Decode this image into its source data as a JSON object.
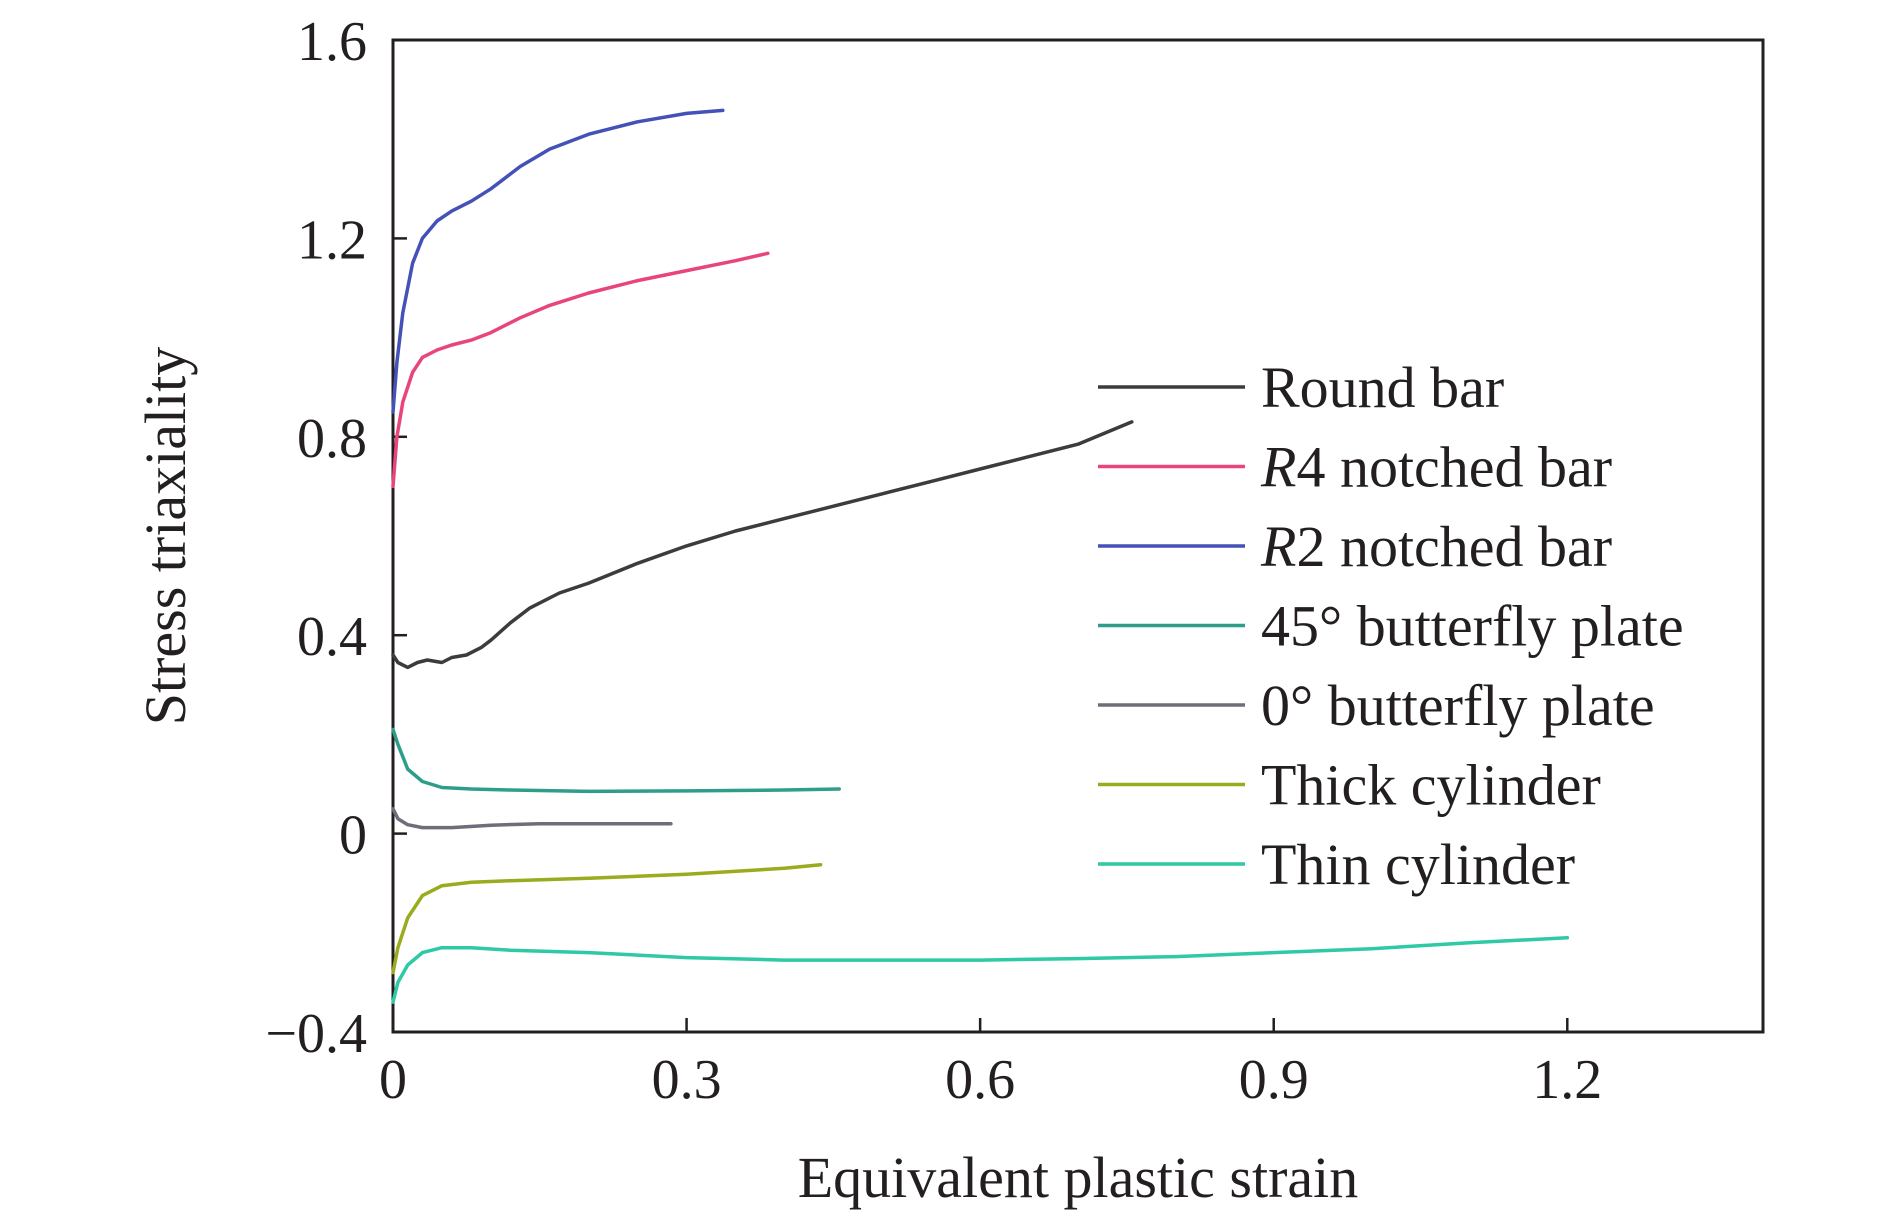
{
  "chart_data": {
    "type": "line",
    "xlabel": "Equivalent plastic strain",
    "ylabel": "Stress triaxiality",
    "xlim": [
      0,
      1.4
    ],
    "ylim": [
      -0.4,
      1.6
    ],
    "x_ticks": [
      "0",
      "0.3",
      "0.6",
      "0.9",
      "1.2"
    ],
    "y_ticks": [
      "−0.4",
      "0",
      "0.4",
      "0.8",
      "1.2",
      "1.6"
    ],
    "x_tick_values": [
      0,
      0.3,
      0.6,
      0.9,
      1.2
    ],
    "y_tick_values": [
      -0.4,
      0,
      0.4,
      0.8,
      1.2,
      1.6
    ],
    "grid": false,
    "legend_position": "right",
    "series": [
      {
        "name": "Round bar",
        "italic_prefix": "",
        "name_rest": "Round bar",
        "color": "#3c3c3c",
        "points": [
          [
            0,
            0.36
          ],
          [
            0.005,
            0.345
          ],
          [
            0.015,
            0.335
          ],
          [
            0.025,
            0.345
          ],
          [
            0.035,
            0.35
          ],
          [
            0.05,
            0.345
          ],
          [
            0.06,
            0.355
          ],
          [
            0.075,
            0.36
          ],
          [
            0.09,
            0.375
          ],
          [
            0.1,
            0.39
          ],
          [
            0.12,
            0.425
          ],
          [
            0.14,
            0.455
          ],
          [
            0.17,
            0.485
          ],
          [
            0.2,
            0.505
          ],
          [
            0.25,
            0.545
          ],
          [
            0.3,
            0.58
          ],
          [
            0.35,
            0.61
          ],
          [
            0.4,
            0.635
          ],
          [
            0.45,
            0.66
          ],
          [
            0.5,
            0.685
          ],
          [
            0.55,
            0.71
          ],
          [
            0.6,
            0.735
          ],
          [
            0.65,
            0.76
          ],
          [
            0.7,
            0.785
          ],
          [
            0.755,
            0.83
          ]
        ]
      },
      {
        "name": "R4 notched bar",
        "italic_prefix": "R",
        "name_rest": "4 notched bar",
        "color": "#e8457a",
        "points": [
          [
            0,
            0.7
          ],
          [
            0.004,
            0.8
          ],
          [
            0.01,
            0.87
          ],
          [
            0.02,
            0.93
          ],
          [
            0.03,
            0.96
          ],
          [
            0.045,
            0.975
          ],
          [
            0.06,
            0.985
          ],
          [
            0.08,
            0.995
          ],
          [
            0.1,
            1.01
          ],
          [
            0.13,
            1.04
          ],
          [
            0.16,
            1.065
          ],
          [
            0.2,
            1.09
          ],
          [
            0.25,
            1.115
          ],
          [
            0.3,
            1.135
          ],
          [
            0.35,
            1.155
          ],
          [
            0.383,
            1.17
          ]
        ]
      },
      {
        "name": "R2 notched bar",
        "italic_prefix": "R",
        "name_rest": "2 notched bar",
        "color": "#4451b6",
        "points": [
          [
            0,
            0.85
          ],
          [
            0.004,
            0.95
          ],
          [
            0.01,
            1.05
          ],
          [
            0.02,
            1.15
          ],
          [
            0.03,
            1.2
          ],
          [
            0.045,
            1.235
          ],
          [
            0.06,
            1.255
          ],
          [
            0.08,
            1.275
          ],
          [
            0.1,
            1.3
          ],
          [
            0.13,
            1.345
          ],
          [
            0.16,
            1.38
          ],
          [
            0.2,
            1.41
          ],
          [
            0.25,
            1.435
          ],
          [
            0.3,
            1.452
          ],
          [
            0.337,
            1.458
          ]
        ]
      },
      {
        "name": "45° butterfly plate",
        "italic_prefix": "",
        "name_rest": "45° butterfly plate",
        "color": "#2e9e8a",
        "points": [
          [
            0,
            0.21
          ],
          [
            0.005,
            0.18
          ],
          [
            0.015,
            0.13
          ],
          [
            0.03,
            0.105
          ],
          [
            0.05,
            0.093
          ],
          [
            0.08,
            0.09
          ],
          [
            0.12,
            0.088
          ],
          [
            0.2,
            0.085
          ],
          [
            0.3,
            0.086
          ],
          [
            0.4,
            0.088
          ],
          [
            0.456,
            0.09
          ]
        ]
      },
      {
        "name": "0° butterfly plate",
        "italic_prefix": "",
        "name_rest": "0° butterfly plate",
        "color": "#6e6e7a",
        "points": [
          [
            0,
            0.05
          ],
          [
            0.005,
            0.03
          ],
          [
            0.015,
            0.018
          ],
          [
            0.03,
            0.012
          ],
          [
            0.06,
            0.012
          ],
          [
            0.1,
            0.017
          ],
          [
            0.15,
            0.02
          ],
          [
            0.2,
            0.02
          ],
          [
            0.284,
            0.02
          ]
        ]
      },
      {
        "name": "Thick cylinder",
        "italic_prefix": "",
        "name_rest": "Thick cylinder",
        "color": "#9aab1e",
        "points": [
          [
            0,
            -0.28
          ],
          [
            0.005,
            -0.23
          ],
          [
            0.015,
            -0.17
          ],
          [
            0.03,
            -0.125
          ],
          [
            0.05,
            -0.105
          ],
          [
            0.08,
            -0.098
          ],
          [
            0.12,
            -0.095
          ],
          [
            0.2,
            -0.09
          ],
          [
            0.3,
            -0.082
          ],
          [
            0.4,
            -0.07
          ],
          [
            0.437,
            -0.063
          ]
        ]
      },
      {
        "name": "Thin cylinder",
        "italic_prefix": "",
        "name_rest": "Thin cylinder",
        "color": "#2ec9a5",
        "points": [
          [
            0,
            -0.34
          ],
          [
            0.005,
            -0.3
          ],
          [
            0.015,
            -0.265
          ],
          [
            0.03,
            -0.24
          ],
          [
            0.05,
            -0.23
          ],
          [
            0.08,
            -0.23
          ],
          [
            0.12,
            -0.235
          ],
          [
            0.2,
            -0.24
          ],
          [
            0.3,
            -0.25
          ],
          [
            0.4,
            -0.255
          ],
          [
            0.5,
            -0.255
          ],
          [
            0.6,
            -0.255
          ],
          [
            0.7,
            -0.252
          ],
          [
            0.8,
            -0.248
          ],
          [
            0.9,
            -0.24
          ],
          [
            1.0,
            -0.232
          ],
          [
            1.1,
            -0.22
          ],
          [
            1.2,
            -0.21
          ]
        ]
      }
    ]
  }
}
